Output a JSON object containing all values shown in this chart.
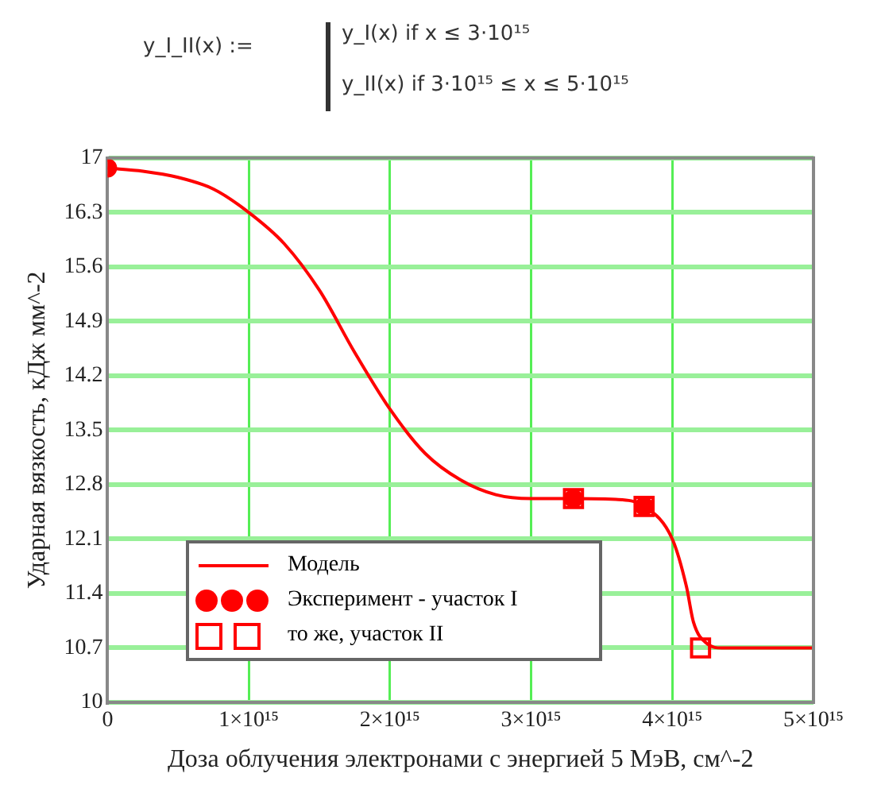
{
  "chart_data": {
    "type": "line",
    "annotations": [
      "y_I_II(x) :=",
      "y_I(x)  if  x ≤ 3·10¹⁵",
      "y_II(x)  if  3·10¹⁵ ≤ x ≤ 5·10¹⁵"
    ],
    "xlabel": "Доза облучения электронами с энергией 5 МэВ, см^-2",
    "ylabel": "Ударная вязкость, кДж мм^-2",
    "xlim": [
      0,
      5000000000000000.0
    ],
    "xticks": [
      0,
      {
        "value": 1000000000000000.0,
        "label": "1×10¹⁵"
      },
      {
        "value": 2000000000000000.0,
        "label": "2×10¹⁵"
      },
      {
        "value": 3000000000000000.0,
        "label": "3×10¹⁵"
      },
      {
        "value": 4000000000000000.0,
        "label": "4×10¹⁵"
      },
      {
        "value": 5000000000000000.0,
        "label": "5×10¹⁵"
      }
    ],
    "ylim": [
      10,
      17
    ],
    "yticks": [
      10,
      10.7,
      11.4,
      12.1,
      12.8,
      13.5,
      14.2,
      14.9,
      15.6,
      16.3,
      17
    ],
    "grid": true,
    "legend": "bottom left",
    "series": [
      {
        "name": "Модель",
        "color": "#ff0000",
        "marker": "none",
        "line_style": "solid",
        "x": [
          0,
          250000000000000.0,
          500000000000000.0,
          750000000000000.0,
          1000000000000000.0,
          1250000000000000.0,
          1500000000000000.0,
          1750000000000000.0,
          2000000000000000.0,
          2250000000000000.0,
          2500000000000000.0,
          2750000000000000.0,
          3000000000000000.0,
          3300000000000000.0,
          3600000000000000.0,
          3800000000000000.0,
          4000000000000000.0,
          4100000000000000.0,
          4150000000000000.0,
          4250000000000000.0,
          4350000000000000.0,
          5000000000000000.0
        ],
        "values": [
          16.87,
          16.83,
          16.75,
          16.6,
          16.3,
          15.9,
          15.3,
          14.5,
          13.77,
          13.2,
          12.86,
          12.67,
          12.62,
          12.62,
          12.61,
          12.52,
          12.1,
          11.49,
          11.03,
          10.75,
          10.7,
          10.7
        ]
      },
      {
        "name": "Эксперимент - участок I",
        "type": "scatter",
        "color": "#ff0000",
        "marker": "circle",
        "x": [
          0,
          3300000000000000.0,
          3800000000000000.0
        ],
        "values": [
          16.87,
          12.62,
          12.52
        ]
      },
      {
        "name": "то же, участок II",
        "type": "scatter",
        "color": "#ff0000",
        "marker": "square",
        "x": [
          3300000000000000.0,
          3800000000000000.0,
          4200000000000000.0
        ],
        "values": [
          12.62,
          12.52,
          10.7
        ]
      }
    ]
  }
}
